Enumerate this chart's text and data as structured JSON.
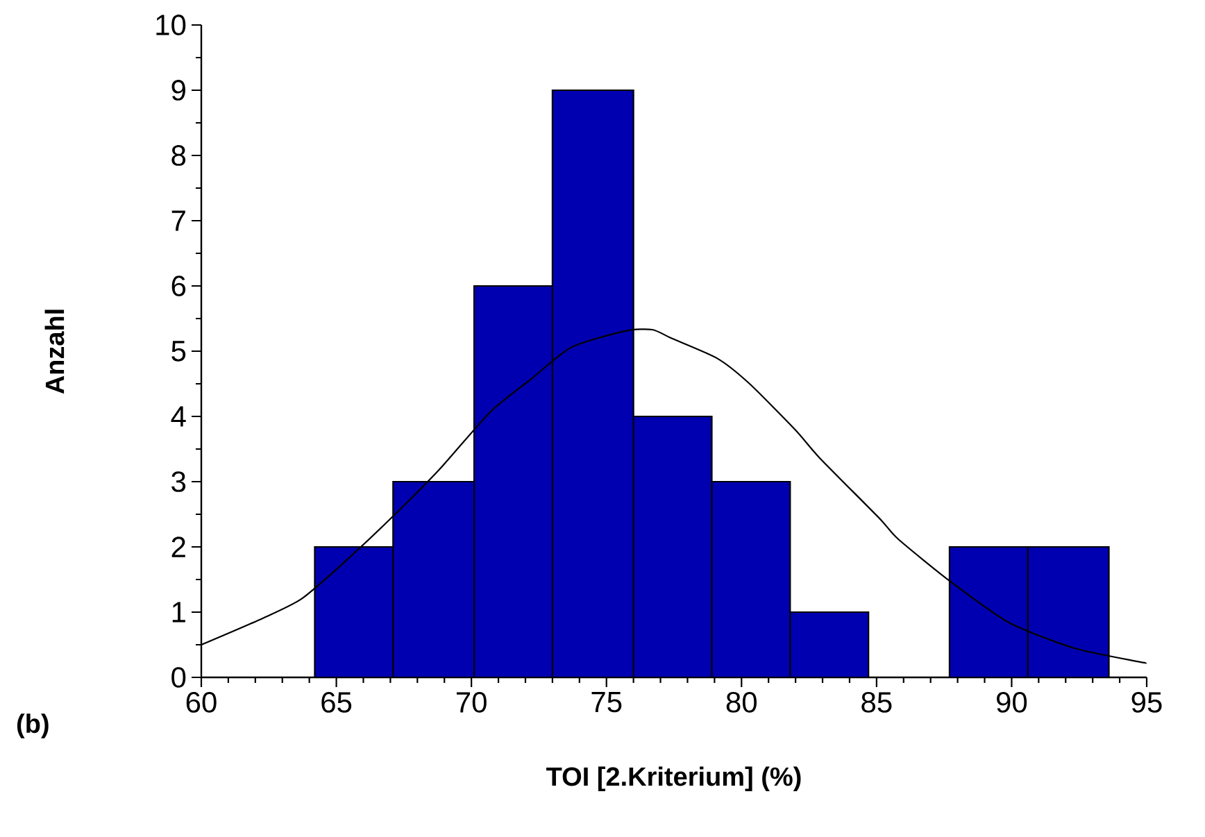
{
  "chart_data": {
    "type": "histogram",
    "bins": [
      64.2,
      67.1,
      70.1,
      73.0,
      76.0,
      78.9,
      81.8,
      84.7,
      87.7,
      90.6,
      93.6
    ],
    "values": [
      2,
      3,
      6,
      9,
      4,
      3,
      1,
      0,
      2,
      2
    ],
    "color": "#0000b0",
    "series": [
      {
        "type": "line",
        "color": "#000000",
        "x": [
          60,
          62.3,
          63.7,
          65.2,
          67.1,
          68.8,
          70.7,
          72.2,
          73.7,
          75.7,
          76.7,
          77.4,
          79.1,
          80.3,
          82.0,
          82.9,
          85.1,
          85.8,
          87.7,
          89.9,
          92.3,
          94.7,
          95
        ],
        "values": [
          0.5,
          0.91,
          1.2,
          1.73,
          2.47,
          3.18,
          4.07,
          4.57,
          5.06,
          5.31,
          5.33,
          5.2,
          4.89,
          4.5,
          3.79,
          3.36,
          2.44,
          2.12,
          1.48,
          0.84,
          0.45,
          0.24,
          0.22
        ]
      }
    ],
    "xlabel": "TOI [2.Kriterium] (%)",
    "ylabel": "Anzahl",
    "annotations": [
      "(b)"
    ],
    "xlim": [
      60,
      95
    ],
    "ylim": [
      0,
      10
    ],
    "xticks": [
      60,
      65,
      70,
      75,
      80,
      85,
      90,
      95
    ],
    "yticks": [
      0,
      1,
      2,
      3,
      4,
      5,
      6,
      7,
      8,
      9,
      10
    ]
  }
}
